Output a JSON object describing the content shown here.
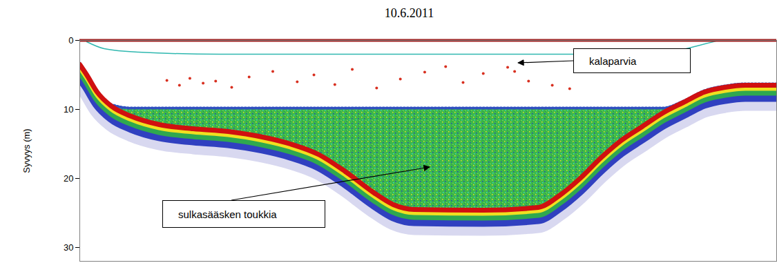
{
  "chart_data": {
    "type": "echogram",
    "title": "10.6.2011",
    "y_label": "Syvyys (m)",
    "xlim": [
      0,
      100
    ],
    "ylim": [
      0,
      32
    ],
    "yticks": [
      0,
      10,
      20,
      30
    ],
    "tick_labels": "y",
    "grid": false,
    "series": [
      {
        "type": "line",
        "color": "#d01010",
        "x": [
          0,
          1.0,
          2.5,
          4.5,
          7.4,
          11.4,
          16.3,
          21.3,
          26.2,
          30.2,
          34.2,
          38.1,
          42.1,
          45,
          48,
          57.9,
          65.8,
          68.8,
          71.8,
          74.8,
          77.7,
          80.7,
          83.7,
          86.6,
          89.6,
          92.6,
          95.5,
          100
        ],
        "values": [
          3.5,
          5,
          7.5,
          9.5,
          11,
          12.2,
          12.8,
          13.2,
          14,
          15,
          16.5,
          19,
          22,
          23.8,
          24.5,
          24.6,
          24.2,
          22.5,
          20,
          17,
          14.5,
          12.5,
          10.5,
          9,
          7.5,
          6.8,
          6.5,
          6.5
        ]
      },
      {
        "type": "area",
        "color": "#3cb84a",
        "x": [
          0,
          1.0,
          2.5,
          4.5,
          7.4,
          11.4,
          16.3,
          21.3,
          26.2,
          30.2,
          34.2,
          38.1,
          42.1,
          45,
          48,
          57.9,
          65.8,
          68.8,
          71.8,
          74.8,
          77.7,
          80.7,
          83.7,
          86.6,
          89.6,
          92.6,
          95.5,
          100
        ],
        "values": [
          3.5,
          5,
          7.5,
          9.5,
          10,
          10,
          10,
          10,
          10,
          10,
          10,
          10,
          10,
          10,
          10,
          10,
          10,
          10,
          10,
          10,
          10,
          10,
          10,
          9,
          7.5,
          6.8,
          6.5,
          6.5
        ]
      },
      {
        "type": "scatter",
        "color": "#d83020",
        "x": [
          12.5,
          14.3,
          15.8,
          17.7,
          19.5,
          21.8,
          24.3,
          27.7,
          31.2,
          33.6,
          36.6,
          39.1,
          42.6,
          46.0,
          49.5,
          52.5,
          55.0,
          57.9,
          61.4,
          62.4,
          64.4,
          67.8,
          70.3
        ],
        "values": [
          5.8,
          6.5,
          5.5,
          6.2,
          5.9,
          6.8,
          5.3,
          4.5,
          6.0,
          5.0,
          6.4,
          4.2,
          6.9,
          5.6,
          4.6,
          3.8,
          6.1,
          4.8,
          3.9,
          4.5,
          5.9,
          6.5,
          7.0
        ]
      },
      {
        "type": "line",
        "color": "#30b8b0",
        "x": [
          1,
          3.5,
          8.4,
          20,
          50,
          80,
          84.7,
          88.6,
          91.6
        ],
        "values": [
          0.2,
          1.2,
          1.7,
          2,
          2,
          2,
          1.7,
          0.8,
          0
        ]
      }
    ],
    "annotations": [
      {
        "text": "kalaparvia"
      },
      {
        "text": "sulkasääsken toukkia"
      }
    ]
  }
}
